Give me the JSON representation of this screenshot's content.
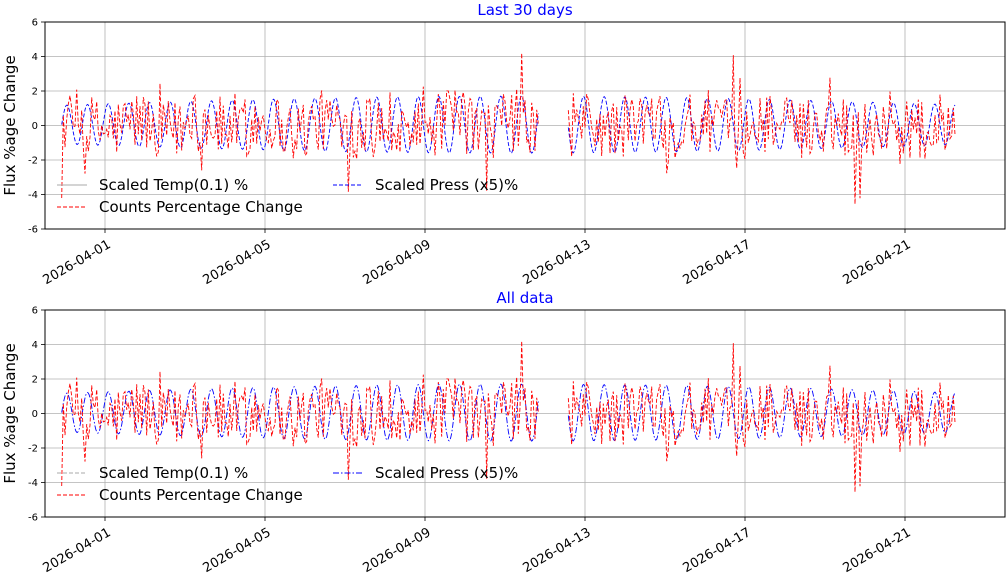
{
  "chart_data": [
    {
      "type": "line",
      "title": "Last 30 days",
      "xlabel": "",
      "ylabel": "Flux %age Change",
      "ylim": [
        -6,
        6
      ],
      "yticks": [
        -6,
        -4,
        -2,
        0,
        2,
        4,
        6
      ],
      "xlim": [
        "2026-03-30T12:00",
        "2026-04-23T12:00"
      ],
      "xticks": [
        "2026-04-01",
        "2026-04-05",
        "2026-04-09",
        "2026-04-13",
        "2026-04-17",
        "2026-04-21"
      ],
      "grid": true,
      "legend_location": "lower-left",
      "series": [
        {
          "name": "Scaled Temp(0.1) %",
          "color": "#aaaaaa",
          "style": "solid",
          "x_start": "2026-03-30T22:00",
          "x_end": "2026-04-22T06:00",
          "values": []
        },
        {
          "name": "Scaled Press (x5)%",
          "color": "#0000ff",
          "style": "dashed",
          "x_start": "2026-03-30T22:00",
          "x_end": "2026-04-22T06:00",
          "gap": [
            "2026-04-11T20:00",
            "2026-04-12T14:00"
          ],
          "amplitude": 1.5,
          "period_hours": 12.4
        },
        {
          "name": "Counts Percentage Change",
          "color": "#ff0000",
          "style": "dashed",
          "x_start": "2026-03-30T22:00",
          "x_end": "2026-04-22T06:00",
          "gap": [
            "2026-04-11T20:00",
            "2026-04-12T14:00"
          ],
          "min": -6,
          "max": 4.7
        }
      ]
    },
    {
      "type": "line",
      "title": "All data",
      "xlabel": "",
      "ylabel": "Flux %age Change",
      "ylim": [
        -6,
        6
      ],
      "yticks": [
        -6,
        -4,
        -2,
        0,
        2,
        4,
        6
      ],
      "xlim": [
        "2026-03-30T12:00",
        "2026-04-23T12:00"
      ],
      "xticks": [
        "2026-04-01",
        "2026-04-05",
        "2026-04-09",
        "2026-04-13",
        "2026-04-17",
        "2026-04-21"
      ],
      "grid": true,
      "legend_location": "lower-left",
      "series": [
        {
          "name": "Scaled Temp(0.1) %",
          "color": "#aaaaaa",
          "style": "dashed",
          "x_start": "2026-03-30T22:00",
          "x_end": "2026-04-22T06:00",
          "values": []
        },
        {
          "name": "Scaled Press (x5)%",
          "color": "#0000ff",
          "style": "dashdot",
          "x_start": "2026-03-30T22:00",
          "x_end": "2026-04-22T06:00",
          "gap": [
            "2026-04-11T20:00",
            "2026-04-12T14:00"
          ],
          "amplitude": 1.5,
          "period_hours": 12.4
        },
        {
          "name": "Counts Percentage Change",
          "color": "#ff0000",
          "style": "dashed",
          "x_start": "2026-03-30T22:00",
          "x_end": "2026-04-22T06:00",
          "gap": [
            "2026-04-11T20:00",
            "2026-04-12T14:00"
          ],
          "min": -6,
          "max": 4.7
        }
      ]
    }
  ]
}
